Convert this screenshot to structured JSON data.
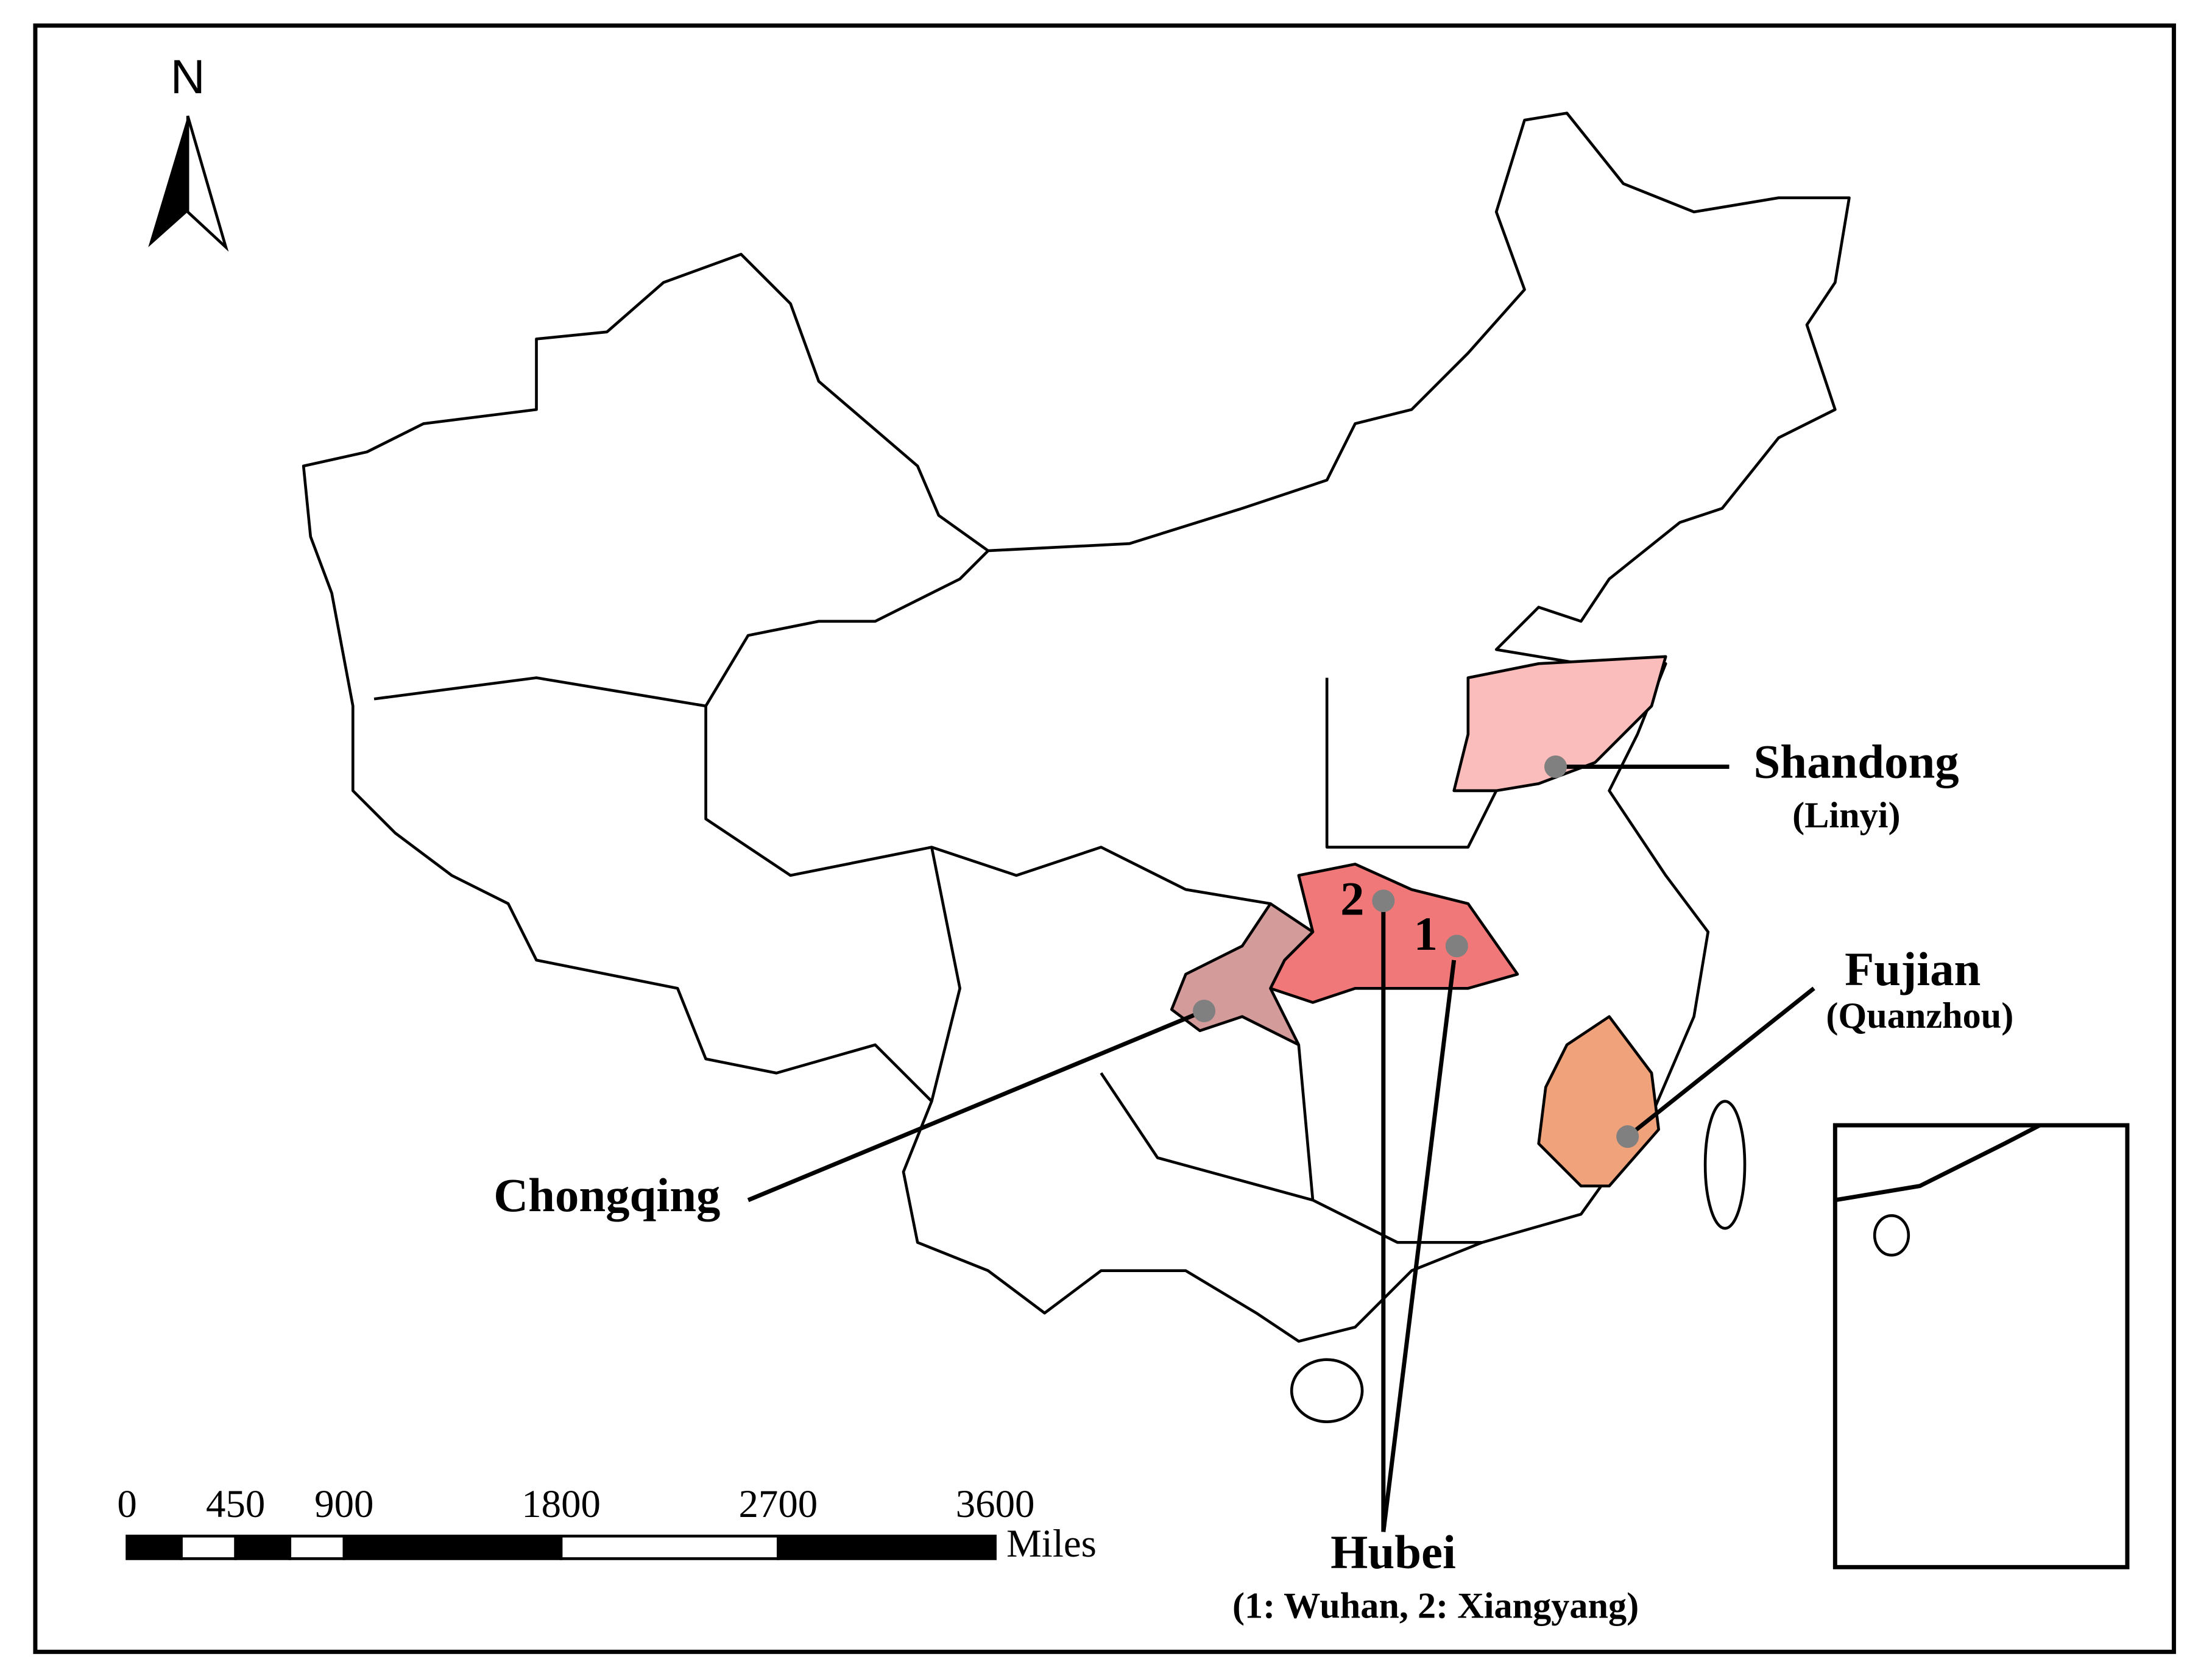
{
  "map": {
    "north_label": "N",
    "scale_bar": {
      "ticks": [
        0,
        450,
        900,
        1800,
        2700,
        3600
      ],
      "unit": "Miles"
    },
    "regions": [
      {
        "name": "Shandong",
        "city": "(Linyi)",
        "color": "#fbbcbc"
      },
      {
        "name": "Hubei",
        "city": "(1: Wuhan, 2: Xiangyang)",
        "color": "#f07878",
        "points": [
          "1",
          "2"
        ]
      },
      {
        "name": "Chongqing",
        "color": "#d49b9b"
      },
      {
        "name": "Fujian",
        "city": "(Quanzhou)",
        "color": "#f0a27a"
      }
    ]
  }
}
